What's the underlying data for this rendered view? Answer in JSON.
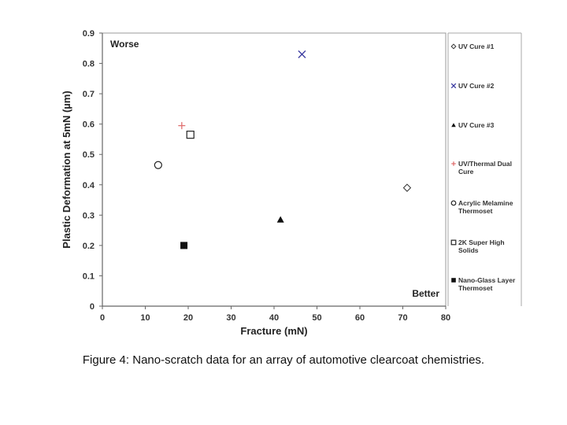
{
  "chart_data": {
    "type": "scatter",
    "xlabel": "Fracture (mN)",
    "ylabel": "Plastic Deformation at 5mN (µm)",
    "xlim": [
      0,
      80
    ],
    "ylim": [
      0,
      0.9
    ],
    "x_ticks": [
      "0",
      "10",
      "20",
      "30",
      "40",
      "50",
      "60",
      "70",
      "80"
    ],
    "y_ticks": [
      "0",
      "0.1",
      "0.2",
      "0.3",
      "0.4",
      "0.5",
      "0.6",
      "0.7",
      "0.8",
      "0.9"
    ],
    "grid": false,
    "legend_position": "right",
    "annotations": {
      "top_left": "Worse",
      "bottom_right": "Better"
    },
    "series": [
      {
        "name": "UV Cure #1",
        "marker": "diamond-open",
        "color": "#333333",
        "x": 71,
        "y": 0.39
      },
      {
        "name": "UV Cure #2",
        "marker": "x",
        "color": "#3a3aa0",
        "x": 46.5,
        "y": 0.83
      },
      {
        "name": "UV Cure #3",
        "marker": "triangle-filled",
        "color": "#111111",
        "x": 41.5,
        "y": 0.285
      },
      {
        "name": "UV/Thermal Dual Cure",
        "marker": "plus",
        "color": "#e07070",
        "x": 18.5,
        "y": 0.595
      },
      {
        "name": "Acrylic Melamine Thermoset",
        "marker": "circle-open",
        "color": "#222222",
        "x": 13,
        "y": 0.465
      },
      {
        "name": "2K Super High Solids",
        "marker": "square-open",
        "color": "#222222",
        "x": 20.5,
        "y": 0.565
      },
      {
        "name": "Nano-Glass Layer Thermoset",
        "marker": "square-filled",
        "color": "#111111",
        "x": 19,
        "y": 0.2
      }
    ]
  },
  "legend_lines": [
    [
      "UV Cure #1"
    ],
    [
      "UV Cure #2"
    ],
    [
      "UV Cure #3"
    ],
    [
      "UV/Thermal Dual",
      "Cure"
    ],
    [
      "Acrylic Melamine",
      "Thermoset"
    ],
    [
      "2K Super High",
      "Solids"
    ],
    [
      "Nano-Glass Layer",
      "Thermoset"
    ]
  ],
  "caption": "Figure 4:  Nano-scratch data for an array of automotive clearcoat chemistries."
}
